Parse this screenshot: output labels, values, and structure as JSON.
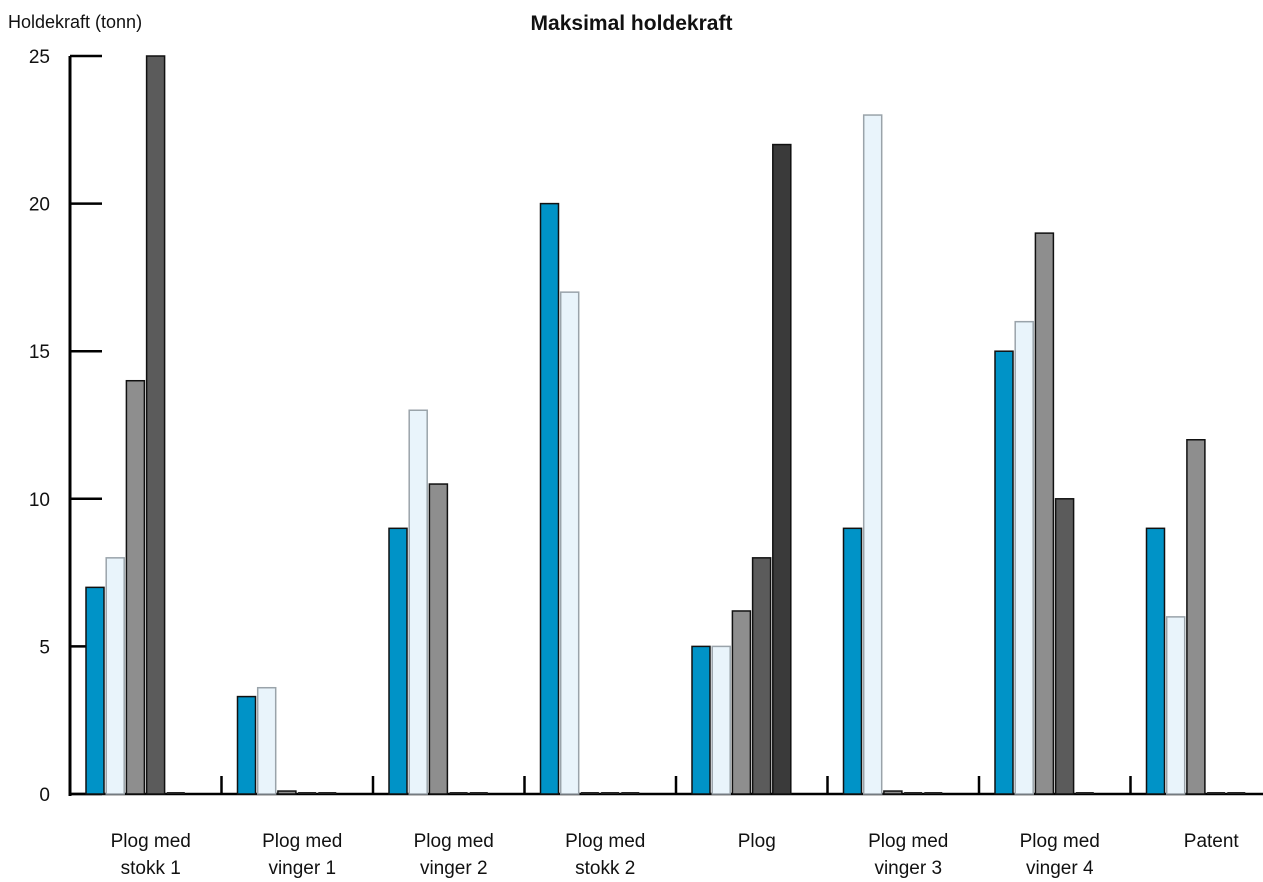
{
  "chart_data": {
    "type": "bar",
    "title": "Maksimal holdekraft",
    "ylabel": "Holdekraft (tonn)",
    "xlabel": "",
    "ylim": [
      0,
      25
    ],
    "yticks": [
      0,
      5,
      10,
      15,
      20,
      25
    ],
    "grid": false,
    "categories": [
      [
        "Plog med",
        "stokk 1"
      ],
      [
        "Plog med",
        "vinger 1"
      ],
      [
        "Plog med",
        "vinger 2"
      ],
      [
        "Plog med",
        "stokk 2"
      ],
      [
        "Plog"
      ],
      [
        "Plog med",
        "vinger 3"
      ],
      [
        "Plog med",
        "vinger 4"
      ],
      [
        "Patent"
      ]
    ],
    "series": [
      {
        "color": "#0093c7",
        "values": [
          7,
          3.3,
          9,
          20,
          5,
          9,
          15,
          9
        ]
      },
      {
        "color": "#e9f4fb",
        "values": [
          8,
          3.6,
          13,
          17,
          5,
          23,
          16,
          6
        ]
      },
      {
        "color": "#8e8e8e",
        "values": [
          14,
          0.1,
          10.5,
          0,
          6.2,
          0.1,
          19,
          12
        ]
      },
      {
        "color": "#5b5b5b",
        "values": [
          25,
          0,
          0,
          0,
          8,
          0,
          10,
          0
        ]
      },
      {
        "color": "#3a3a3a",
        "values": [
          0,
          0,
          0,
          0,
          22,
          0,
          0,
          0
        ]
      }
    ],
    "legend": "none"
  }
}
